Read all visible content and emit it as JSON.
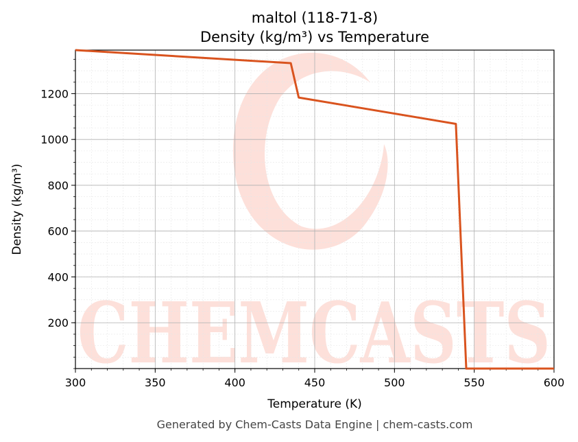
{
  "chart_data": {
    "type": "line",
    "title_line1": "maltol (118-71-8)",
    "title_line2": "Density (kg/m³) vs Temperature",
    "xlabel": "Temperature (K)",
    "ylabel": "Density (kg/m³)",
    "xlim": [
      300,
      600
    ],
    "ylim": [
      0,
      1390
    ],
    "xticks": [
      300,
      350,
      400,
      450,
      500,
      550,
      600
    ],
    "yticks": [
      200,
      400,
      600,
      800,
      1000,
      1200
    ],
    "grid": true,
    "color": "#d9531e",
    "series": [
      {
        "x": [
          300,
          435,
          440,
          538.5,
          545,
          600
        ],
        "y": [
          1390,
          1333,
          1183,
          1068,
          0,
          0
        ]
      }
    ]
  },
  "watermark": {
    "text": "CHEMCASTS",
    "color": "#fde0da"
  },
  "footer": "Generated by Chem-Casts Data Engine | chem-casts.com"
}
